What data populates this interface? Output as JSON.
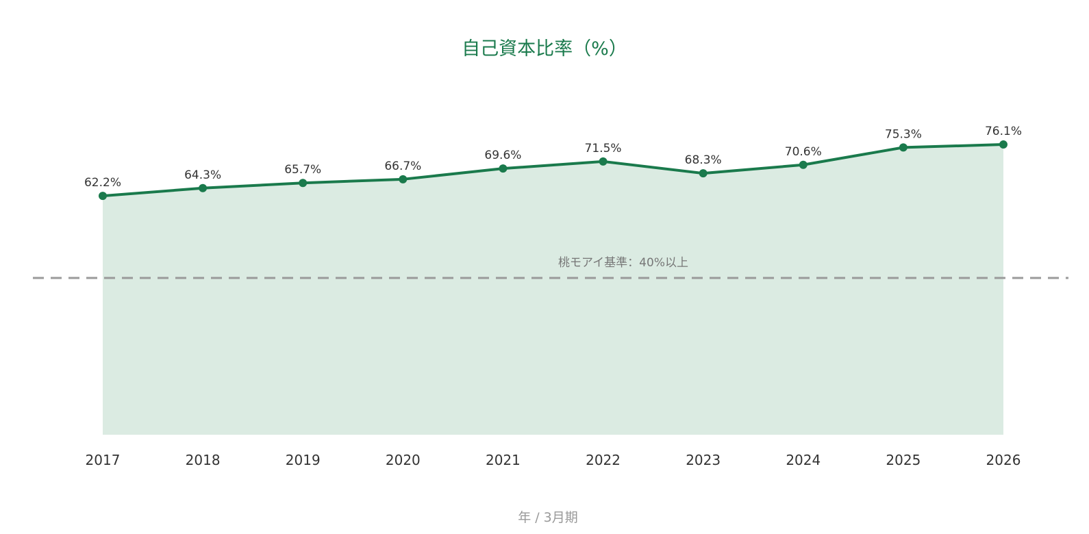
{
  "chart_data": {
    "type": "area",
    "title": "自己資本比率（%）",
    "xlabel": "年 / 3月期",
    "ylabel": "",
    "categories": [
      "2017",
      "2018",
      "2019",
      "2020",
      "2021",
      "2022",
      "2023",
      "2024",
      "2025",
      "2026"
    ],
    "series": [
      {
        "values": [
          62.2,
          64.3,
          65.7,
          66.7,
          69.6,
          71.5,
          68.3,
          70.6,
          75.3,
          76.1
        ],
        "data_labels": [
          "62.2%",
          "64.3%",
          "65.7%",
          "66.7%",
          "69.6%",
          "71.5%",
          "68.3%",
          "70.6%",
          "75.3%",
          "76.1%"
        ]
      }
    ],
    "reference_line": {
      "value": 40,
      "label": "桃モアイ基準：40%以上"
    },
    "grid": false,
    "legend": "none",
    "colors": {
      "line": "#1a7a4c",
      "fill": "#dbebe2",
      "title": "#1a7a4c",
      "reference": "#9a9a9a"
    }
  }
}
